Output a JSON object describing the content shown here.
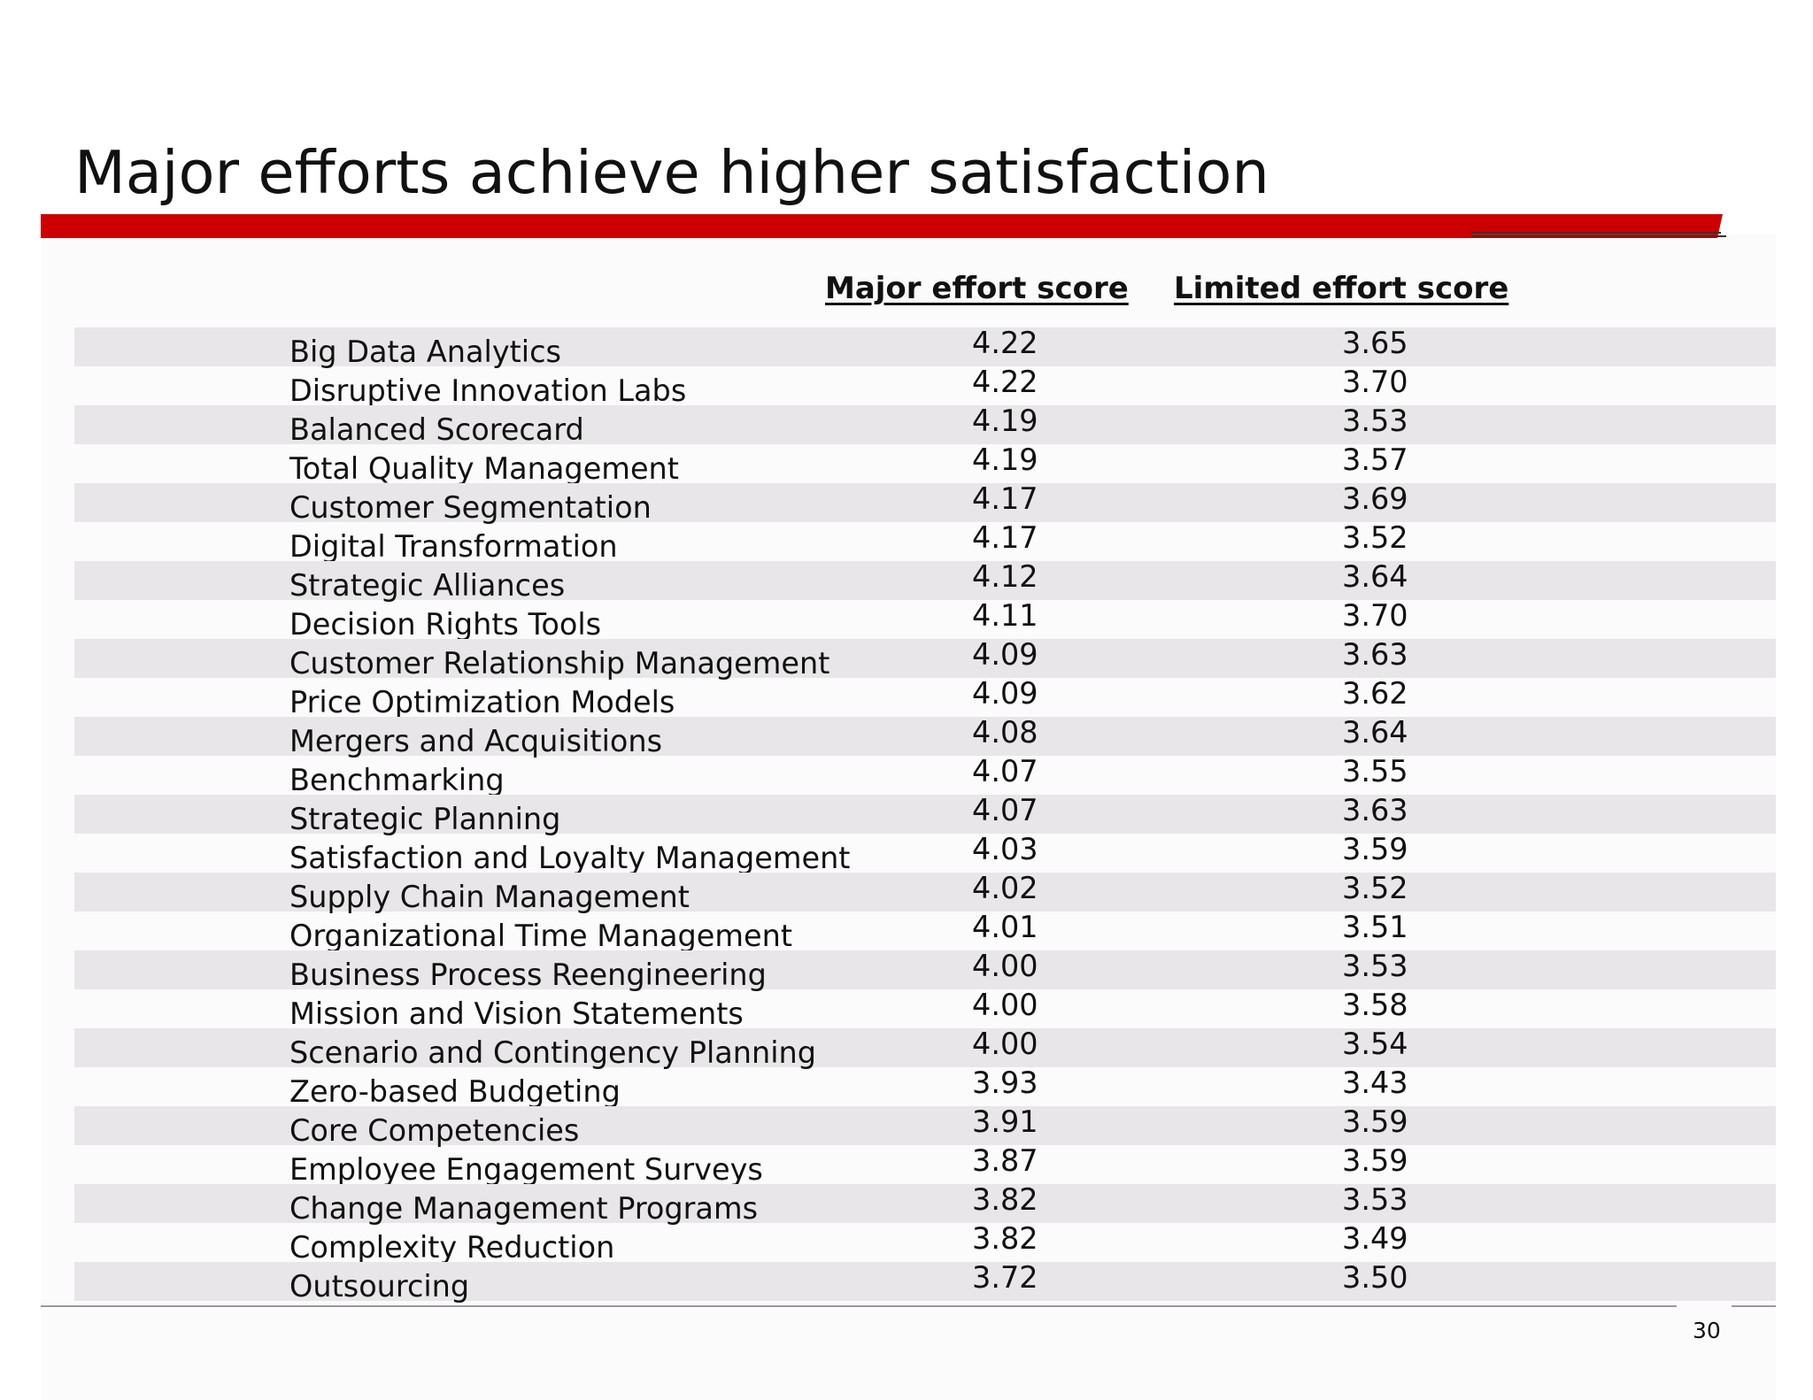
{
  "slide": {
    "title": "Major efforts achieve higher satisfaction",
    "page_number": "30",
    "accent_color": "#cc0000"
  },
  "table": {
    "headers": {
      "major": "Major effort score",
      "limited": "Limited effort score"
    },
    "rows": [
      {
        "name": "Big Data Analytics",
        "major": "4.22",
        "limited": "3.65"
      },
      {
        "name": "Disruptive Innovation Labs",
        "major": "4.22",
        "limited": "3.70"
      },
      {
        "name": "Balanced Scorecard",
        "major": "4.19",
        "limited": "3.53"
      },
      {
        "name": "Total Quality Management",
        "major": "4.19",
        "limited": "3.57"
      },
      {
        "name": "Customer Segmentation",
        "major": "4.17",
        "limited": "3.69"
      },
      {
        "name": "Digital Transformation",
        "major": "4.17",
        "limited": "3.52"
      },
      {
        "name": "Strategic Alliances",
        "major": "4.12",
        "limited": "3.64"
      },
      {
        "name": "Decision Rights Tools",
        "major": "4.11",
        "limited": "3.70"
      },
      {
        "name": "Customer Relationship Management",
        "major": "4.09",
        "limited": "3.63"
      },
      {
        "name": "Price Optimization Models",
        "major": "4.09",
        "limited": "3.62"
      },
      {
        "name": "Mergers and Acquisitions",
        "major": "4.08",
        "limited": "3.64"
      },
      {
        "name": "Benchmarking",
        "major": "4.07",
        "limited": "3.55"
      },
      {
        "name": "Strategic Planning",
        "major": "4.07",
        "limited": "3.63"
      },
      {
        "name": "Satisfaction and Loyalty Management",
        "major": "4.03",
        "limited": "3.59"
      },
      {
        "name": "Supply Chain Management",
        "major": "4.02",
        "limited": "3.52"
      },
      {
        "name": "Organizational Time Management",
        "major": "4.01",
        "limited": "3.51"
      },
      {
        "name": "Business Process Reengineering",
        "major": "4.00",
        "limited": "3.53"
      },
      {
        "name": "Mission and Vision Statements",
        "major": "4.00",
        "limited": "3.58"
      },
      {
        "name": "Scenario and Contingency Planning",
        "major": "4.00",
        "limited": "3.54"
      },
      {
        "name": "Zero-based Budgeting",
        "major": "3.93",
        "limited": "3.43"
      },
      {
        "name": "Core Competencies",
        "major": "3.91",
        "limited": "3.59"
      },
      {
        "name": "Employee Engagement Surveys",
        "major": "3.87",
        "limited": "3.59"
      },
      {
        "name": "Change Management Programs",
        "major": "3.82",
        "limited": "3.53"
      },
      {
        "name": "Complexity Reduction",
        "major": "3.82",
        "limited": "3.49"
      },
      {
        "name": "Outsourcing",
        "major": "3.72",
        "limited": "3.50"
      }
    ]
  }
}
